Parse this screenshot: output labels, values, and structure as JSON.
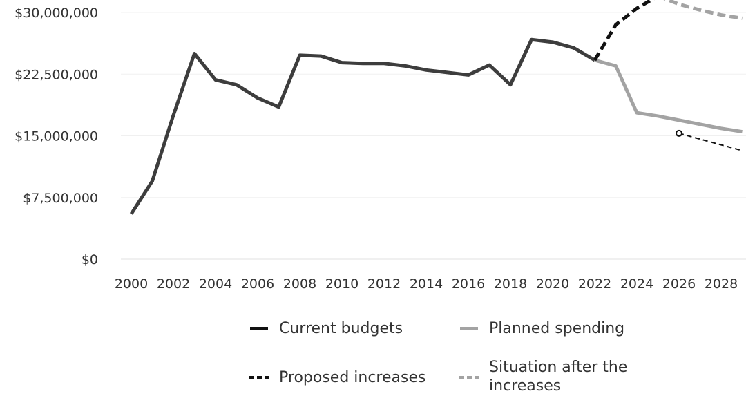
{
  "chart_data": {
    "type": "line",
    "title": "",
    "xlabel": "",
    "ylabel": "",
    "ylim": [
      0,
      30000000
    ],
    "xlim": [
      2000,
      2029
    ],
    "y_ticks": [
      {
        "value": 0,
        "label": "$0"
      },
      {
        "value": 7500000,
        "label": "$7,500,000"
      },
      {
        "value": 15000000,
        "label": "$15,000,000"
      },
      {
        "value": 22500000,
        "label": "$22,500,000"
      },
      {
        "value": 30000000,
        "label": "$30,000,000"
      }
    ],
    "x_ticks": [
      "2000",
      "2002",
      "2004",
      "2006",
      "2008",
      "2010",
      "2012",
      "2014",
      "2016",
      "2018",
      "2020",
      "2022",
      "2024",
      "2026",
      "2028"
    ],
    "grid": true,
    "legend_position": "bottom",
    "series": [
      {
        "name": "Current budgets",
        "color": "#3d3d3d",
        "style": "solid",
        "x": [
          2000,
          2001,
          2002,
          2003,
          2004,
          2005,
          2006,
          2007,
          2008,
          2009,
          2010,
          2011,
          2012,
          2013,
          2014,
          2015,
          2016,
          2017,
          2018,
          2019,
          2020,
          2021,
          2022
        ],
        "y": [
          5500000,
          9500000,
          17500000,
          25000000,
          21800000,
          21200000,
          19600000,
          18500000,
          24800000,
          24700000,
          23900000,
          23800000,
          23800000,
          23500000,
          23000000,
          22700000,
          22400000,
          23600000,
          21200000,
          26700000,
          26400000,
          25700000,
          24200000
        ]
      },
      {
        "name": "Planned spending",
        "color": "#a3a3a3",
        "style": "solid",
        "x": [
          2022,
          2023,
          2024,
          2025,
          2026,
          2027,
          2028,
          2029
        ],
        "y": [
          24200000,
          23500000,
          17800000,
          17400000,
          16900000,
          16400000,
          15900000,
          15500000
        ]
      },
      {
        "name": "Proposed increases",
        "color": "#111111",
        "style": "dashed",
        "x": [
          2022,
          2023,
          2024,
          2025
        ],
        "y": [
          24200000,
          28500000,
          30500000,
          32000000
        ]
      },
      {
        "name": "Situation after the increases",
        "color": "#a3a3a3",
        "style": "dashed",
        "x": [
          2025,
          2026,
          2027,
          2028,
          2029
        ],
        "y": [
          32000000,
          31000000,
          30300000,
          29700000,
          29300000
        ]
      }
    ],
    "annotations": [
      {
        "type": "dashed-line-with-marker",
        "color": "#111111",
        "x": [
          2026,
          2029
        ],
        "y": [
          15300000,
          13200000
        ]
      }
    ]
  },
  "legend": {
    "items": [
      {
        "label": "Current budgets",
        "color": "#111111",
        "style": "solid"
      },
      {
        "label": "Planned spending",
        "color": "#a3a3a3",
        "style": "solid"
      },
      {
        "label": "Proposed increases",
        "color": "#111111",
        "style": "dashed"
      },
      {
        "label_line1": "Situation after the",
        "label_line2": "increases",
        "color": "#a3a3a3",
        "style": "dashed"
      }
    ]
  }
}
